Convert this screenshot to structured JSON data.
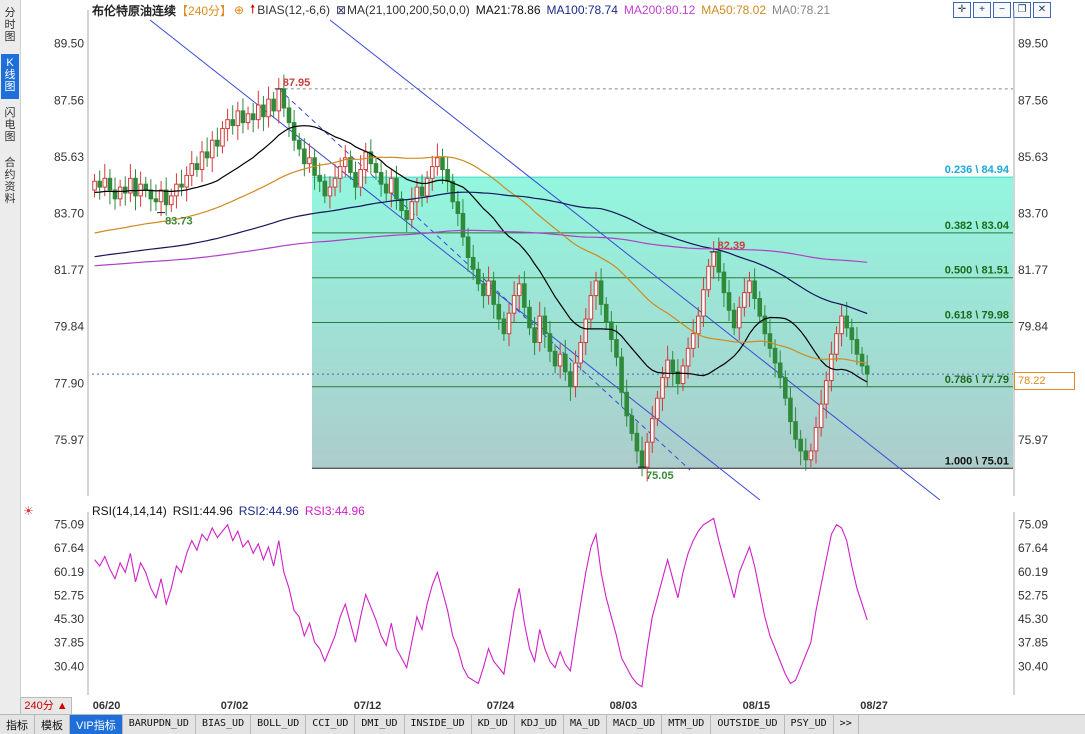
{
  "left_tabs": [
    "分时图",
    "K线图",
    "闪电图",
    "合约资料"
  ],
  "header": {
    "title": "布伦特原油连续",
    "period": "【240分】",
    "bias_label": "BIAS(12,-6,6)",
    "ma_label": "MA(21,100,200,50,0,0)",
    "ma21": "MA21:78.86",
    "ma100": "MA100:78.74",
    "ma200": "MA200:80.12",
    "ma50": "MA50:78.02",
    "ma0": "MA0:78.21"
  },
  "rsi_header": {
    "label": "RSI(14,14,14)",
    "rsi1": "RSI1:44.96",
    "rsi2": "RSI2:44.96",
    "rsi3": "RSI3:44.96"
  },
  "current_price": "78.22",
  "period_box": "240分 ▲",
  "bottom_tabs": [
    "指标",
    "模板",
    "VIP指标",
    "BARUPDN_UD",
    "BIAS_UD",
    "BOLL_UD",
    "CCI_UD",
    "DMI_UD",
    "INSIDE_UD",
    "KD_UD",
    "KDJ_UD",
    "MA_UD",
    "MACD_UD",
    "MTM_UD",
    "OUTSIDE_UD",
    "PSY_UD",
    ">>"
  ],
  "colors": {
    "up": "#d43a3a",
    "down": "#2f8a3a",
    "ma21": "#000000",
    "ma100": "#14155c",
    "ma200": "#b040c8",
    "ma50": "#d08a20",
    "rsi": "#d020c8",
    "fib_top": "#7ff5d8",
    "fib_bottom": "#9ec3c3",
    "channel": "#3a4ad8"
  },
  "chart_data": {
    "type": "candlestick",
    "price_axis_ticks": [
      89.5,
      87.56,
      85.63,
      83.7,
      81.77,
      79.84,
      77.9,
      75.97
    ],
    "price_axis_labels": [
      "89.50",
      "87.56",
      "85.63",
      "83.70",
      "81.77",
      "79.84",
      "77.90",
      "75.97"
    ],
    "ylim": [
      74.2,
      90.3
    ],
    "x_labels": [
      "06/20",
      "07/02",
      "07/12",
      "07/24",
      "08/03",
      "08/15",
      "08/27"
    ],
    "annotations": [
      {
        "text": "87.95",
        "value": 87.95,
        "kind": "high"
      },
      {
        "text": "83.73",
        "value": 83.73,
        "kind": "low"
      },
      {
        "text": "82.39",
        "value": 82.39,
        "kind": "high"
      },
      {
        "text": "75.05",
        "value": 75.05,
        "kind": "low"
      }
    ],
    "fibonacci": [
      {
        "label": "0.236 \\ 84.94",
        "value": 84.94
      },
      {
        "label": "0.382 \\ 83.04",
        "value": 83.04
      },
      {
        "label": "0.500 \\ 81.51",
        "value": 81.51
      },
      {
        "label": "0.618 \\ 79.98",
        "value": 79.98
      },
      {
        "label": "0.786 \\ 77.79",
        "value": 77.79
      },
      {
        "label": "1.000 \\ 75.01",
        "value": 75.01
      }
    ],
    "closes": [
      84.8,
      84.6,
      84.9,
      84.5,
      84.2,
      84.6,
      84.4,
      84.9,
      84.3,
      84.7,
      84.5,
      84.2,
      84.1,
      84.5,
      84.0,
      84.3,
      84.7,
      84.6,
      85.0,
      85.4,
      85.2,
      85.8,
      85.6,
      86.2,
      86.0,
      86.6,
      86.9,
      86.7,
      87.2,
      86.8,
      87.1,
      86.9,
      87.4,
      87.0,
      87.6,
      87.2,
      87.95,
      87.3,
      86.8,
      86.2,
      85.9,
      85.4,
      85.6,
      85.0,
      84.8,
      84.3,
      84.6,
      84.9,
      85.3,
      85.6,
      85.1,
      84.6,
      85.2,
      85.8,
      85.4,
      85.1,
      84.7,
      84.4,
      84.9,
      84.2,
      83.8,
      83.5,
      84.1,
      84.6,
      84.3,
      84.9,
      85.3,
      85.6,
      85.2,
      84.8,
      84.1,
      83.7,
      82.9,
      82.2,
      81.8,
      81.3,
      80.9,
      81.4,
      80.6,
      80.1,
      79.6,
      80.3,
      80.9,
      81.3,
      80.5,
      79.8,
      79.3,
      80.2,
      79.6,
      79.0,
      78.5,
      78.9,
      78.3,
      77.8,
      78.6,
      79.3,
      80.1,
      80.9,
      81.4,
      80.6,
      80.0,
      79.4,
      78.8,
      77.6,
      76.8,
      76.2,
      75.6,
      75.05,
      75.9,
      76.7,
      77.4,
      78.1,
      78.7,
      78.3,
      77.9,
      78.5,
      79.1,
      79.6,
      80.2,
      81.1,
      81.9,
      82.39,
      81.7,
      81.0,
      80.4,
      79.8,
      80.5,
      81.0,
      81.4,
      80.8,
      80.2,
      79.6,
      79.1,
      78.6,
      78.1,
      77.4,
      76.6,
      76.0,
      75.6,
      75.3,
      75.6,
      76.4,
      77.2,
      78.0,
      78.9,
      79.6,
      80.2,
      79.8,
      79.4,
      78.9,
      78.5,
      78.22
    ],
    "rsi": [
      64,
      62,
      65,
      61,
      58,
      63,
      60,
      66,
      57,
      63,
      60,
      55,
      52,
      58,
      50,
      55,
      62,
      60,
      66,
      70,
      67,
      72,
      70,
      74,
      71,
      73,
      75,
      70,
      73,
      68,
      70,
      66,
      69,
      64,
      68,
      62,
      70,
      60,
      55,
      48,
      46,
      40,
      44,
      38,
      36,
      32,
      36,
      40,
      46,
      50,
      44,
      38,
      46,
      53,
      49,
      45,
      40,
      37,
      44,
      36,
      33,
      30,
      38,
      46,
      42,
      50,
      56,
      60,
      54,
      48,
      40,
      36,
      30,
      27,
      26,
      25,
      30,
      36,
      32,
      30,
      28,
      38,
      48,
      55,
      44,
      36,
      32,
      42,
      36,
      32,
      30,
      35,
      31,
      29,
      40,
      50,
      60,
      68,
      72,
      60,
      52,
      46,
      40,
      33,
      30,
      27,
      25,
      24,
      36,
      46,
      52,
      58,
      64,
      58,
      52,
      60,
      66,
      70,
      73,
      75,
      76,
      77,
      70,
      64,
      58,
      52,
      60,
      64,
      68,
      62,
      54,
      46,
      40,
      36,
      32,
      28,
      25,
      26,
      30,
      34,
      38,
      48,
      56,
      64,
      72,
      75,
      74,
      70,
      62,
      55,
      50,
      45
    ],
    "rsi_axis_labels": [
      "75.09",
      "67.64",
      "60.19",
      "52.75",
      "45.30",
      "37.85",
      "30.40"
    ],
    "rsi_ylim": [
      22.0,
      76.5
    ],
    "current_price": 78.22
  }
}
